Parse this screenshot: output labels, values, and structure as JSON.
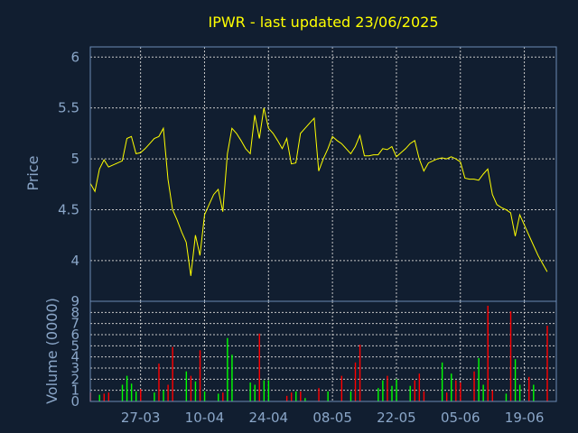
{
  "chart_data": [
    {
      "type": "line",
      "title": "IPWR - last updated 23/06/2025",
      "ylabel": "Price",
      "ylim": [
        3.6,
        6.1
      ],
      "yticks": [
        4,
        4.5,
        5,
        5.5,
        6
      ],
      "xlim": [
        0,
        102
      ],
      "xticks": [
        {
          "label": "27-03",
          "x": 11
        },
        {
          "label": "10-04",
          "x": 25
        },
        {
          "label": "24-04",
          "x": 39
        },
        {
          "label": "08-05",
          "x": 53
        },
        {
          "label": "22-05",
          "x": 67
        },
        {
          "label": "05-06",
          "x": 81
        },
        {
          "label": "19-06",
          "x": 95
        }
      ],
      "grid": true,
      "colors": {
        "line": "#ffff00",
        "grid": "#c8c8c8",
        "axis": "#6a8bb5",
        "background": "#111e30"
      },
      "x": [
        0,
        1,
        2,
        3,
        4,
        5,
        6,
        7,
        8,
        9,
        10,
        11,
        12,
        13,
        14,
        15,
        16,
        17,
        18,
        19,
        20,
        21,
        22,
        23,
        24,
        25,
        26,
        27,
        28,
        29,
        30,
        31,
        32,
        33,
        34,
        35,
        36,
        37,
        38,
        39,
        40,
        41,
        42,
        43,
        44,
        45,
        46,
        47,
        48,
        49,
        50,
        51,
        52,
        53,
        54,
        55,
        56,
        57,
        58,
        59,
        60,
        61,
        62,
        63,
        64,
        65,
        66,
        67,
        68,
        69,
        70,
        71,
        72,
        73,
        74,
        75,
        76,
        77,
        78,
        79,
        80,
        81,
        82,
        83,
        84,
        85,
        86,
        87,
        88,
        89,
        90,
        91,
        92,
        93,
        94,
        95,
        96,
        97,
        98,
        99,
        100
      ],
      "values": [
        4.76,
        4.68,
        4.9,
        4.99,
        4.92,
        4.94,
        4.96,
        4.98,
        5.2,
        5.22,
        5.05,
        5.06,
        5.1,
        5.15,
        5.2,
        5.22,
        5.3,
        4.8,
        4.5,
        4.4,
        4.28,
        4.18,
        3.85,
        4.25,
        4.05,
        4.45,
        4.55,
        4.65,
        4.7,
        4.48,
        5.05,
        5.3,
        5.25,
        5.18,
        5.1,
        5.05,
        5.43,
        5.2,
        5.5,
        5.3,
        5.25,
        5.18,
        5.1,
        5.2,
        4.95,
        4.96,
        5.25,
        5.3,
        5.35,
        5.4,
        4.88,
        5.0,
        5.1,
        5.22,
        5.18,
        5.15,
        5.1,
        5.05,
        5.12,
        5.23,
        5.03,
        5.03,
        5.04,
        5.04,
        5.1,
        5.09,
        5.12,
        5.02,
        5.06,
        5.1,
        5.15,
        5.18,
        5.0,
        4.88,
        4.96,
        4.98,
        5.0,
        5.01,
        5.0,
        5.02,
        5.0,
        4.97,
        4.81,
        4.8,
        4.8,
        4.79,
        4.85,
        4.9,
        4.65,
        4.55,
        4.52,
        4.5,
        4.47,
        4.24,
        4.45,
        4.35,
        4.25,
        4.15,
        4.05,
        3.97,
        3.89
      ]
    },
    {
      "type": "bar",
      "ylabel": "Volume (0000)",
      "ylim": [
        0,
        9
      ],
      "yticks": [
        0,
        1,
        2,
        3,
        4,
        5,
        6,
        7,
        8,
        9
      ],
      "xlim": [
        0,
        102
      ],
      "grid": true,
      "colors": {
        "up": "#00ff00",
        "down": "#ff0000"
      },
      "bars": [
        {
          "x": 0,
          "v": 0.8,
          "dir": "down"
        },
        {
          "x": 2,
          "v": 0.6,
          "dir": "up"
        },
        {
          "x": 3,
          "v": 0.7,
          "dir": "down"
        },
        {
          "x": 4,
          "v": 0.8,
          "dir": "down"
        },
        {
          "x": 7,
          "v": 1.5,
          "dir": "up"
        },
        {
          "x": 8,
          "v": 2.3,
          "dir": "up"
        },
        {
          "x": 9,
          "v": 1.6,
          "dir": "up"
        },
        {
          "x": 10,
          "v": 0.9,
          "dir": "up"
        },
        {
          "x": 11,
          "v": 1.1,
          "dir": "down"
        },
        {
          "x": 14,
          "v": 0.8,
          "dir": "up"
        },
        {
          "x": 15,
          "v": 3.4,
          "dir": "down"
        },
        {
          "x": 16,
          "v": 1.0,
          "dir": "up"
        },
        {
          "x": 17,
          "v": 1.5,
          "dir": "down"
        },
        {
          "x": 18,
          "v": 4.9,
          "dir": "down"
        },
        {
          "x": 21,
          "v": 2.7,
          "dir": "up"
        },
        {
          "x": 22,
          "v": 2.3,
          "dir": "down"
        },
        {
          "x": 23,
          "v": 1.8,
          "dir": "up"
        },
        {
          "x": 24,
          "v": 4.6,
          "dir": "down"
        },
        {
          "x": 25,
          "v": 0.9,
          "dir": "up"
        },
        {
          "x": 28,
          "v": 0.7,
          "dir": "up"
        },
        {
          "x": 29,
          "v": 0.8,
          "dir": "down"
        },
        {
          "x": 30,
          "v": 5.7,
          "dir": "up"
        },
        {
          "x": 31,
          "v": 4.2,
          "dir": "up"
        },
        {
          "x": 35,
          "v": 1.7,
          "dir": "up"
        },
        {
          "x": 36,
          "v": 1.5,
          "dir": "up"
        },
        {
          "x": 37,
          "v": 6.1,
          "dir": "down"
        },
        {
          "x": 38,
          "v": 1.9,
          "dir": "up"
        },
        {
          "x": 39,
          "v": 1.9,
          "dir": "up"
        },
        {
          "x": 43,
          "v": 0.5,
          "dir": "down"
        },
        {
          "x": 44,
          "v": 0.8,
          "dir": "down"
        },
        {
          "x": 45,
          "v": 0.9,
          "dir": "up"
        },
        {
          "x": 46,
          "v": 0.9,
          "dir": "down"
        },
        {
          "x": 47,
          "v": 0.3,
          "dir": "up"
        },
        {
          "x": 50,
          "v": 1.2,
          "dir": "down"
        },
        {
          "x": 52,
          "v": 0.9,
          "dir": "up"
        },
        {
          "x": 55,
          "v": 2.3,
          "dir": "down"
        },
        {
          "x": 57,
          "v": 0.9,
          "dir": "up"
        },
        {
          "x": 58,
          "v": 3.5,
          "dir": "down"
        },
        {
          "x": 59,
          "v": 5.1,
          "dir": "down"
        },
        {
          "x": 63,
          "v": 1.2,
          "dir": "up"
        },
        {
          "x": 64,
          "v": 1.9,
          "dir": "up"
        },
        {
          "x": 65,
          "v": 2.3,
          "dir": "down"
        },
        {
          "x": 66,
          "v": 1.4,
          "dir": "up"
        },
        {
          "x": 67,
          "v": 2.0,
          "dir": "up"
        },
        {
          "x": 70,
          "v": 1.4,
          "dir": "up"
        },
        {
          "x": 71,
          "v": 1.9,
          "dir": "down"
        },
        {
          "x": 72,
          "v": 2.5,
          "dir": "down"
        },
        {
          "x": 73,
          "v": 0.9,
          "dir": "down"
        },
        {
          "x": 77,
          "v": 3.5,
          "dir": "up"
        },
        {
          "x": 78,
          "v": 0.8,
          "dir": "down"
        },
        {
          "x": 79,
          "v": 2.5,
          "dir": "up"
        },
        {
          "x": 80,
          "v": 1.9,
          "dir": "down"
        },
        {
          "x": 81,
          "v": 1.7,
          "dir": "down"
        },
        {
          "x": 84,
          "v": 2.7,
          "dir": "down"
        },
        {
          "x": 85,
          "v": 3.9,
          "dir": "up"
        },
        {
          "x": 86,
          "v": 1.5,
          "dir": "up"
        },
        {
          "x": 87,
          "v": 8.6,
          "dir": "down"
        },
        {
          "x": 88,
          "v": 1.0,
          "dir": "down"
        },
        {
          "x": 91,
          "v": 0.7,
          "dir": "up"
        },
        {
          "x": 92,
          "v": 8.1,
          "dir": "down"
        },
        {
          "x": 93,
          "v": 3.8,
          "dir": "up"
        },
        {
          "x": 94,
          "v": 1.5,
          "dir": "up"
        },
        {
          "x": 96,
          "v": 2.2,
          "dir": "down"
        },
        {
          "x": 97,
          "v": 1.5,
          "dir": "up"
        },
        {
          "x": 100,
          "v": 6.8,
          "dir": "down"
        }
      ]
    }
  ]
}
